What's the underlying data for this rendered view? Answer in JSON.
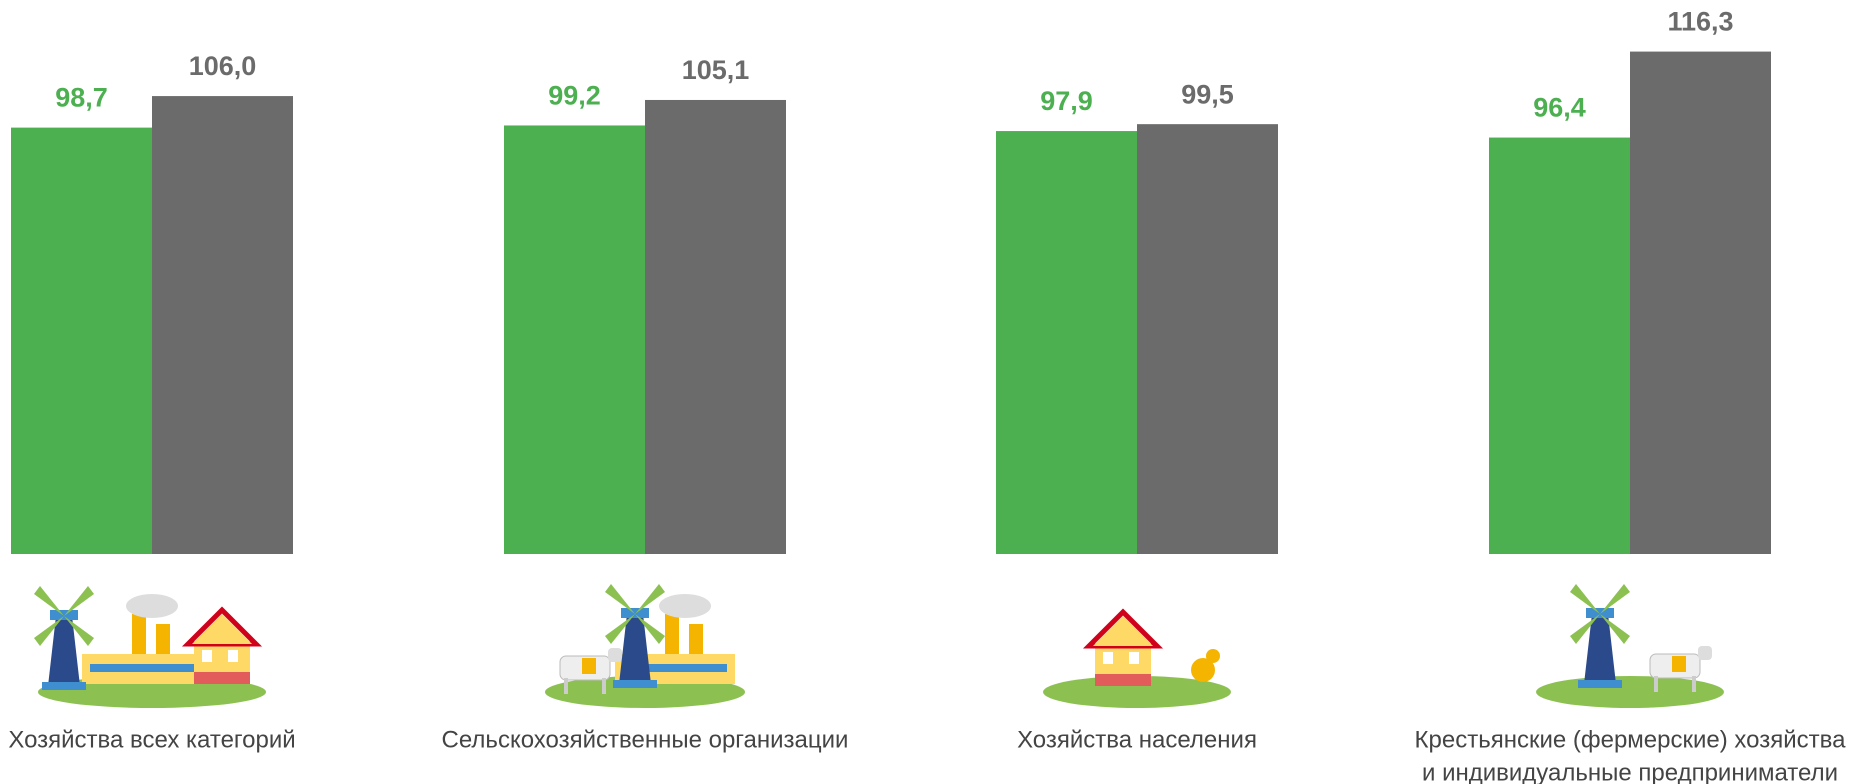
{
  "chart_data": {
    "type": "bar",
    "categories": [
      [
        "Хозяйства всех категорий"
      ],
      [
        "Сельскохозяйственные организации"
      ],
      [
        "Хозяйства населения"
      ],
      [
        "Крестьянские (фермерские) хозяйства",
        "и индивидуальные предприниматели"
      ]
    ],
    "series": [
      {
        "color": "#4caf50",
        "values": [
          98.7,
          99.2,
          97.9,
          96.4
        ],
        "value_labels": [
          "98,7",
          "99,2",
          "97,9",
          "96,4"
        ]
      },
      {
        "color": "#6b6b6b",
        "values": [
          106.0,
          105.1,
          99.5,
          116.3
        ],
        "value_labels": [
          "106,0",
          "105,1",
          "99,5",
          "116,3"
        ]
      }
    ]
  }
}
